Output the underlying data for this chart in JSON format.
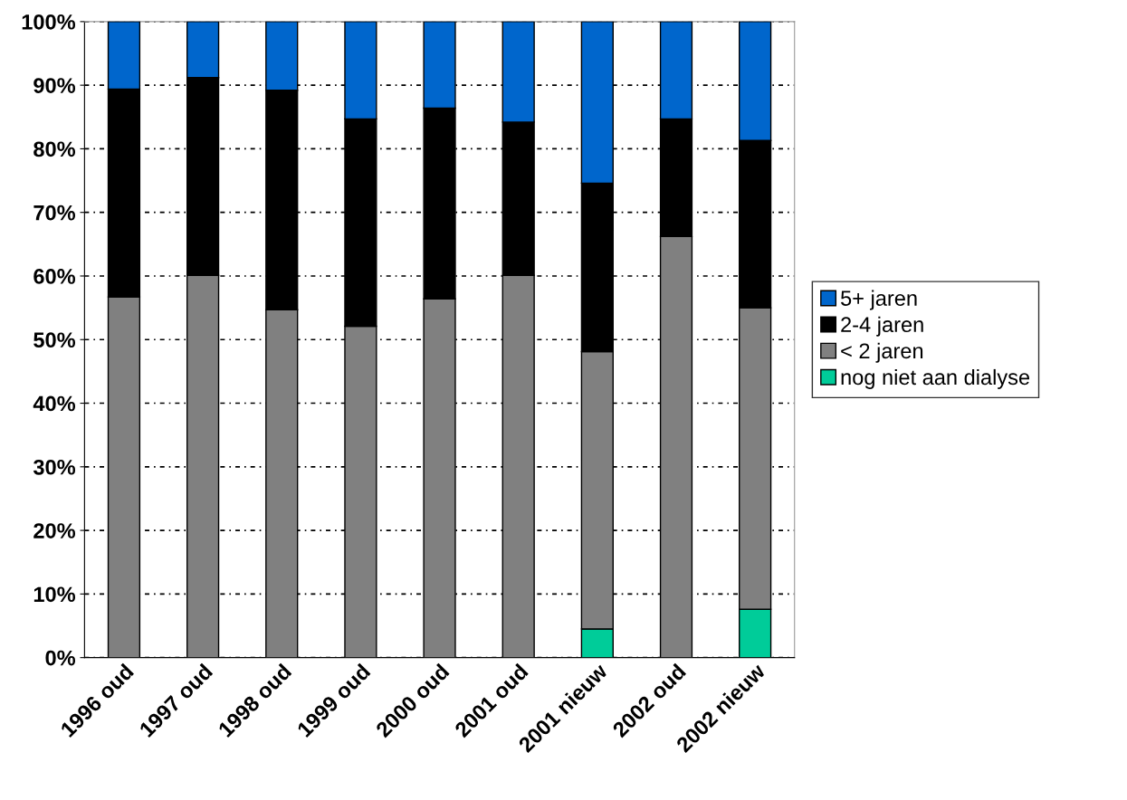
{
  "chart_data": {
    "type": "bar",
    "stacked": true,
    "categories": [
      "1996 oud",
      "1997 oud",
      "1998 oud",
      "1999 oud",
      "2000 oud",
      "2001 oud",
      "2001 nieuw",
      "2002 oud",
      "2002 nieuw"
    ],
    "series": [
      {
        "name": "nog niet aan dialyse",
        "color": "#00cc99",
        "values": [
          0,
          0,
          0,
          0,
          0,
          0,
          4.5,
          0,
          7.6
        ]
      },
      {
        "name": "< 2 jaren",
        "color": "#808080",
        "values": [
          56.7,
          60.1,
          54.7,
          52.1,
          56.4,
          60.1,
          43.6,
          66.2,
          47.4
        ]
      },
      {
        "name": "2-4 jaren",
        "color": "#000000",
        "values": [
          32.7,
          31.1,
          34.5,
          32.6,
          30.0,
          24.1,
          26.5,
          18.5,
          26.3
        ]
      },
      {
        "name": "5+ jaren",
        "color": "#0066cc",
        "values": [
          10.6,
          8.8,
          10.8,
          15.3,
          13.6,
          15.8,
          25.4,
          15.3,
          18.7
        ]
      }
    ],
    "ylim": [
      0,
      100
    ],
    "yticks": [
      {
        "value": 0,
        "label": "0%"
      },
      {
        "value": 10,
        "label": "10%"
      },
      {
        "value": 20,
        "label": "20%"
      },
      {
        "value": 30,
        "label": "30%"
      },
      {
        "value": 40,
        "label": "40%"
      },
      {
        "value": 50,
        "label": "50%"
      },
      {
        "value": 60,
        "label": "60%"
      },
      {
        "value": 70,
        "label": "70%"
      },
      {
        "value": 80,
        "label": "80%"
      },
      {
        "value": 90,
        "label": "90%"
      },
      {
        "value": 100,
        "label": "100%"
      }
    ],
    "grid": "y",
    "legend": "right"
  }
}
